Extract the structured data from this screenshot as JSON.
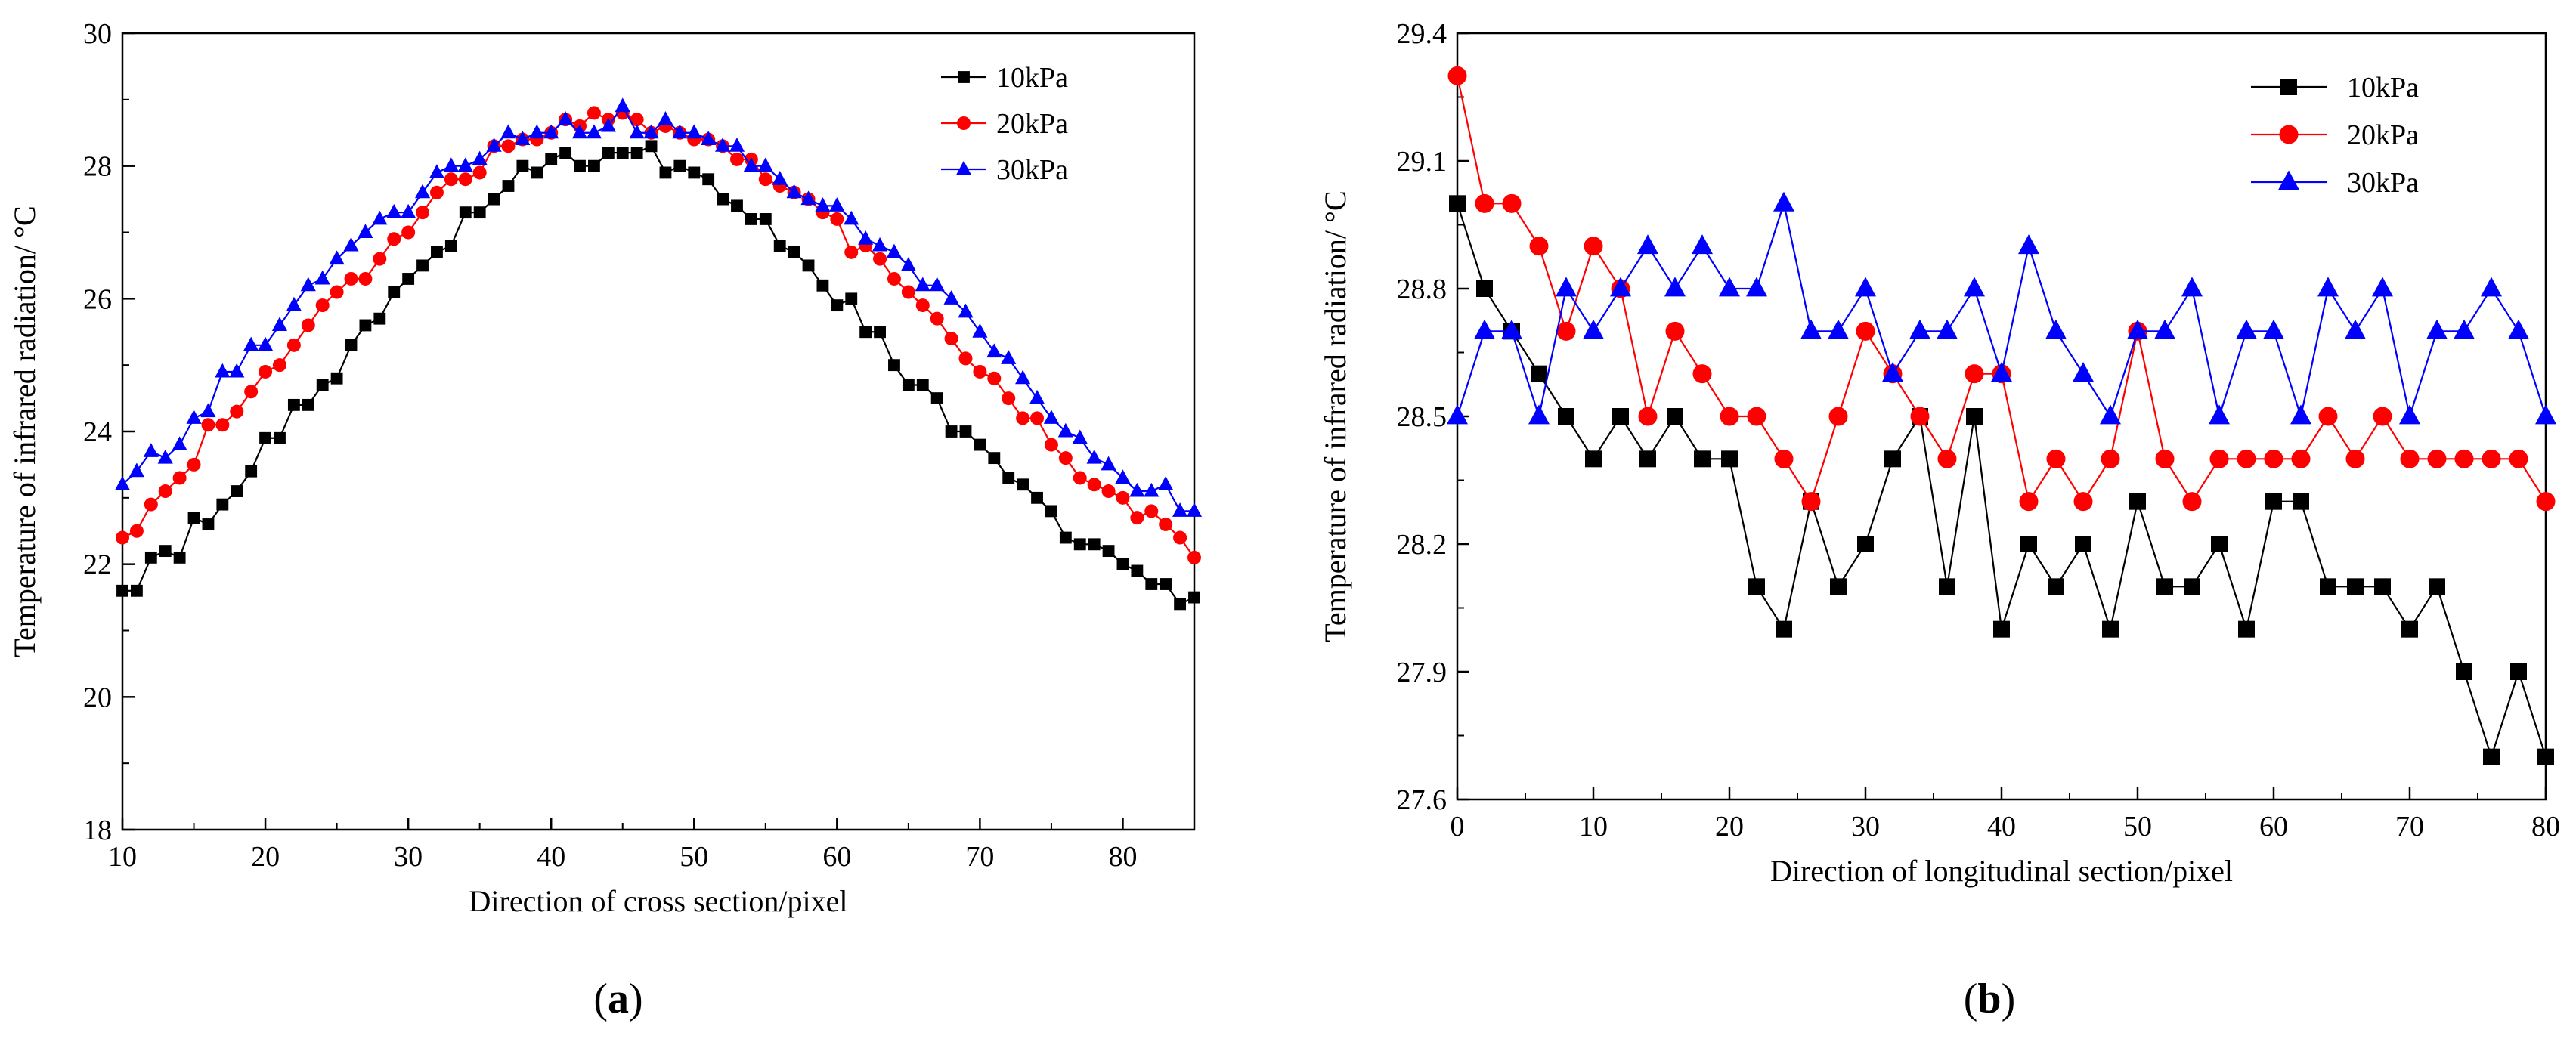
{
  "chart_data": [
    {
      "type": "line",
      "panel_label": "a",
      "xlabel": "Direction of cross section/pixel",
      "ylabel": "Temperature of infrared radiation/ °C",
      "xlim": [
        10,
        85
      ],
      "ylim": [
        18,
        30
      ],
      "x_ticks": [
        10,
        20,
        30,
        40,
        50,
        60,
        70,
        80
      ],
      "y_ticks": [
        18,
        20,
        22,
        24,
        26,
        28,
        30
      ],
      "legend_position": "top-right",
      "x": [
        10,
        11,
        12,
        13,
        14,
        15,
        16,
        17,
        18,
        19,
        20,
        21,
        22,
        23,
        24,
        25,
        26,
        27,
        28,
        29,
        30,
        31,
        32,
        33,
        34,
        35,
        36,
        37,
        38,
        39,
        40,
        41,
        42,
        43,
        44,
        45,
        46,
        47,
        48,
        49,
        50,
        51,
        52,
        53,
        54,
        55,
        56,
        57,
        58,
        59,
        60,
        61,
        62,
        63,
        64,
        65,
        66,
        67,
        68,
        69,
        70,
        71,
        72,
        73,
        74,
        75,
        76,
        77,
        78,
        79,
        80,
        81,
        82,
        83,
        84,
        85
      ],
      "series": [
        {
          "name": "10kPa",
          "color": "#000000",
          "marker": "square",
          "values": [
            21.6,
            21.6,
            22.1,
            22.2,
            22.1,
            22.7,
            22.6,
            22.9,
            23.1,
            23.4,
            23.9,
            23.9,
            24.4,
            24.4,
            24.7,
            24.8,
            25.3,
            25.6,
            25.7,
            26.1,
            26.3,
            26.5,
            26.7,
            26.8,
            27.3,
            27.3,
            27.5,
            27.7,
            28.0,
            27.9,
            28.1,
            28.2,
            28.0,
            28.0,
            28.2,
            28.2,
            28.2,
            28.3,
            27.9,
            28.0,
            27.9,
            27.8,
            27.5,
            27.4,
            27.2,
            27.2,
            26.8,
            26.7,
            26.5,
            26.2,
            25.9,
            26.0,
            25.5,
            25.5,
            25.0,
            24.7,
            24.7,
            24.5,
            24.0,
            24.0,
            23.8,
            23.6,
            23.3,
            23.2,
            23.0,
            22.8,
            22.4,
            22.3,
            22.3,
            22.2,
            22.0,
            21.9,
            21.7,
            21.7,
            21.4,
            21.5
          ]
        },
        {
          "name": "20kPa",
          "color": "#ff0000",
          "marker": "circle",
          "values": [
            22.4,
            22.5,
            22.9,
            23.1,
            23.3,
            23.5,
            24.1,
            24.1,
            24.3,
            24.6,
            24.9,
            25.0,
            25.3,
            25.6,
            25.9,
            26.1,
            26.3,
            26.3,
            26.6,
            26.9,
            27.0,
            27.3,
            27.6,
            27.8,
            27.8,
            27.9,
            28.3,
            28.3,
            28.4,
            28.4,
            28.5,
            28.7,
            28.6,
            28.8,
            28.7,
            28.8,
            28.7,
            28.5,
            28.6,
            28.5,
            28.4,
            28.4,
            28.3,
            28.1,
            28.1,
            27.8,
            27.7,
            27.6,
            27.5,
            27.3,
            27.2,
            26.7,
            26.8,
            26.6,
            26.3,
            26.1,
            25.9,
            25.7,
            25.4,
            25.1,
            24.9,
            24.8,
            24.5,
            24.2,
            24.2,
            23.8,
            23.6,
            23.3,
            23.2,
            23.1,
            23.0,
            22.7,
            22.8,
            22.6,
            22.4,
            22.1
          ]
        },
        {
          "name": "30kPa",
          "color": "#0000ff",
          "marker": "triangle",
          "values": [
            23.2,
            23.4,
            23.7,
            23.6,
            23.8,
            24.2,
            24.3,
            24.9,
            24.9,
            25.3,
            25.3,
            25.6,
            25.9,
            26.2,
            26.3,
            26.6,
            26.8,
            27.0,
            27.2,
            27.3,
            27.3,
            27.6,
            27.9,
            28.0,
            28.0,
            28.1,
            28.3,
            28.5,
            28.4,
            28.5,
            28.5,
            28.7,
            28.5,
            28.5,
            28.6,
            28.9,
            28.5,
            28.5,
            28.7,
            28.5,
            28.5,
            28.4,
            28.3,
            28.3,
            28.0,
            28.0,
            27.8,
            27.6,
            27.5,
            27.4,
            27.4,
            27.2,
            26.9,
            26.8,
            26.7,
            26.5,
            26.2,
            26.2,
            26.0,
            25.8,
            25.5,
            25.2,
            25.1,
            24.8,
            24.5,
            24.2,
            24.0,
            23.9,
            23.6,
            23.5,
            23.3,
            23.1,
            23.1,
            23.2,
            22.8,
            22.8
          ]
        }
      ]
    },
    {
      "type": "line",
      "panel_label": "b",
      "xlabel": "Direction of longitudinal section/pixel",
      "ylabel": "Temperature of infrared radiation/ °C",
      "xlim": [
        0,
        80
      ],
      "ylim": [
        27.6,
        29.4
      ],
      "x_ticks": [
        0,
        10,
        20,
        30,
        40,
        50,
        60,
        70,
        80
      ],
      "y_ticks": [
        "27.6",
        "27.9",
        "28.2",
        "28.5",
        "28.8",
        "29.1",
        "29.4"
      ],
      "legend_position": "top-right",
      "x": [
        0,
        2,
        4,
        6,
        8,
        10,
        12,
        14,
        16,
        18,
        20,
        22,
        24,
        26,
        28,
        30,
        32,
        34,
        36,
        38,
        40,
        42,
        44,
        46,
        48,
        50,
        52,
        54,
        56,
        58,
        60,
        62,
        64,
        66,
        68,
        70,
        72,
        74,
        76,
        78,
        80
      ],
      "series": [
        {
          "name": "10kPa",
          "color": "#000000",
          "marker": "square",
          "values": [
            29.0,
            28.8,
            28.7,
            28.6,
            28.5,
            28.4,
            28.5,
            28.4,
            28.5,
            28.4,
            28.4,
            28.1,
            28.0,
            28.3,
            28.1,
            28.2,
            28.4,
            28.5,
            28.1,
            28.5,
            28.0,
            28.2,
            28.1,
            28.2,
            28.0,
            28.3,
            28.1,
            28.1,
            28.2,
            28.0,
            28.3,
            28.3,
            28.1,
            28.1,
            28.1,
            28.0,
            28.1,
            27.9,
            27.7,
            27.9,
            27.7
          ]
        },
        {
          "name": "20kPa",
          "color": "#ff0000",
          "marker": "circle",
          "values": [
            29.3,
            29.0,
            29.0,
            28.9,
            28.7,
            28.9,
            28.8,
            28.5,
            28.7,
            28.6,
            28.5,
            28.5,
            28.4,
            28.3,
            28.5,
            28.7,
            28.6,
            28.5,
            28.4,
            28.6,
            28.6,
            28.3,
            28.4,
            28.3,
            28.4,
            28.7,
            28.4,
            28.3,
            28.4,
            28.4,
            28.4,
            28.4,
            28.5,
            28.4,
            28.5,
            28.4,
            28.4,
            28.4,
            28.4,
            28.4,
            28.3
          ]
        },
        {
          "name": "30kPa",
          "color": "#0000ff",
          "marker": "triangle",
          "values": [
            28.5,
            28.7,
            28.7,
            28.5,
            28.8,
            28.7,
            28.8,
            28.9,
            28.8,
            28.9,
            28.8,
            28.8,
            29.0,
            28.7,
            28.7,
            28.8,
            28.6,
            28.7,
            28.7,
            28.8,
            28.6,
            28.9,
            28.7,
            28.6,
            28.5,
            28.7,
            28.7,
            28.8,
            28.5,
            28.7,
            28.7,
            28.5,
            28.8,
            28.7,
            28.8,
            28.5,
            28.7,
            28.7,
            28.8,
            28.7,
            28.5
          ]
        }
      ]
    }
  ]
}
